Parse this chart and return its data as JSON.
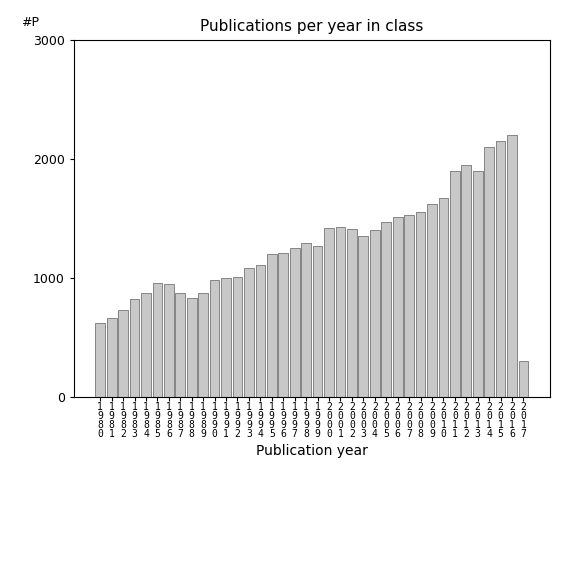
{
  "title": "Publications per year in class",
  "xlabel": "Publication year",
  "ylabel": "#P",
  "bar_color": "#c8c8c8",
  "edge_color": "#606060",
  "ylim": [
    0,
    3000
  ],
  "yticks": [
    0,
    1000,
    2000,
    3000
  ],
  "years": [
    1980,
    1981,
    1982,
    1983,
    1984,
    1985,
    1986,
    1987,
    1988,
    1989,
    1990,
    1991,
    1992,
    1993,
    1994,
    1995,
    1996,
    1997,
    1998,
    1999,
    2000,
    2001,
    2002,
    2003,
    2004,
    2005,
    2006,
    2007,
    2008,
    2009,
    2010,
    2011,
    2012,
    2013,
    2014,
    2015,
    2016,
    2017
  ],
  "values": [
    620,
    660,
    730,
    820,
    870,
    960,
    950,
    870,
    830,
    870,
    980,
    1000,
    1010,
    1080,
    1110,
    1200,
    1210,
    1250,
    1290,
    1270,
    1420,
    1430,
    1410,
    1350,
    1400,
    1470,
    1510,
    1530,
    1550,
    1620,
    1670,
    1900,
    1950,
    1900,
    2100,
    2150,
    2200,
    300
  ]
}
